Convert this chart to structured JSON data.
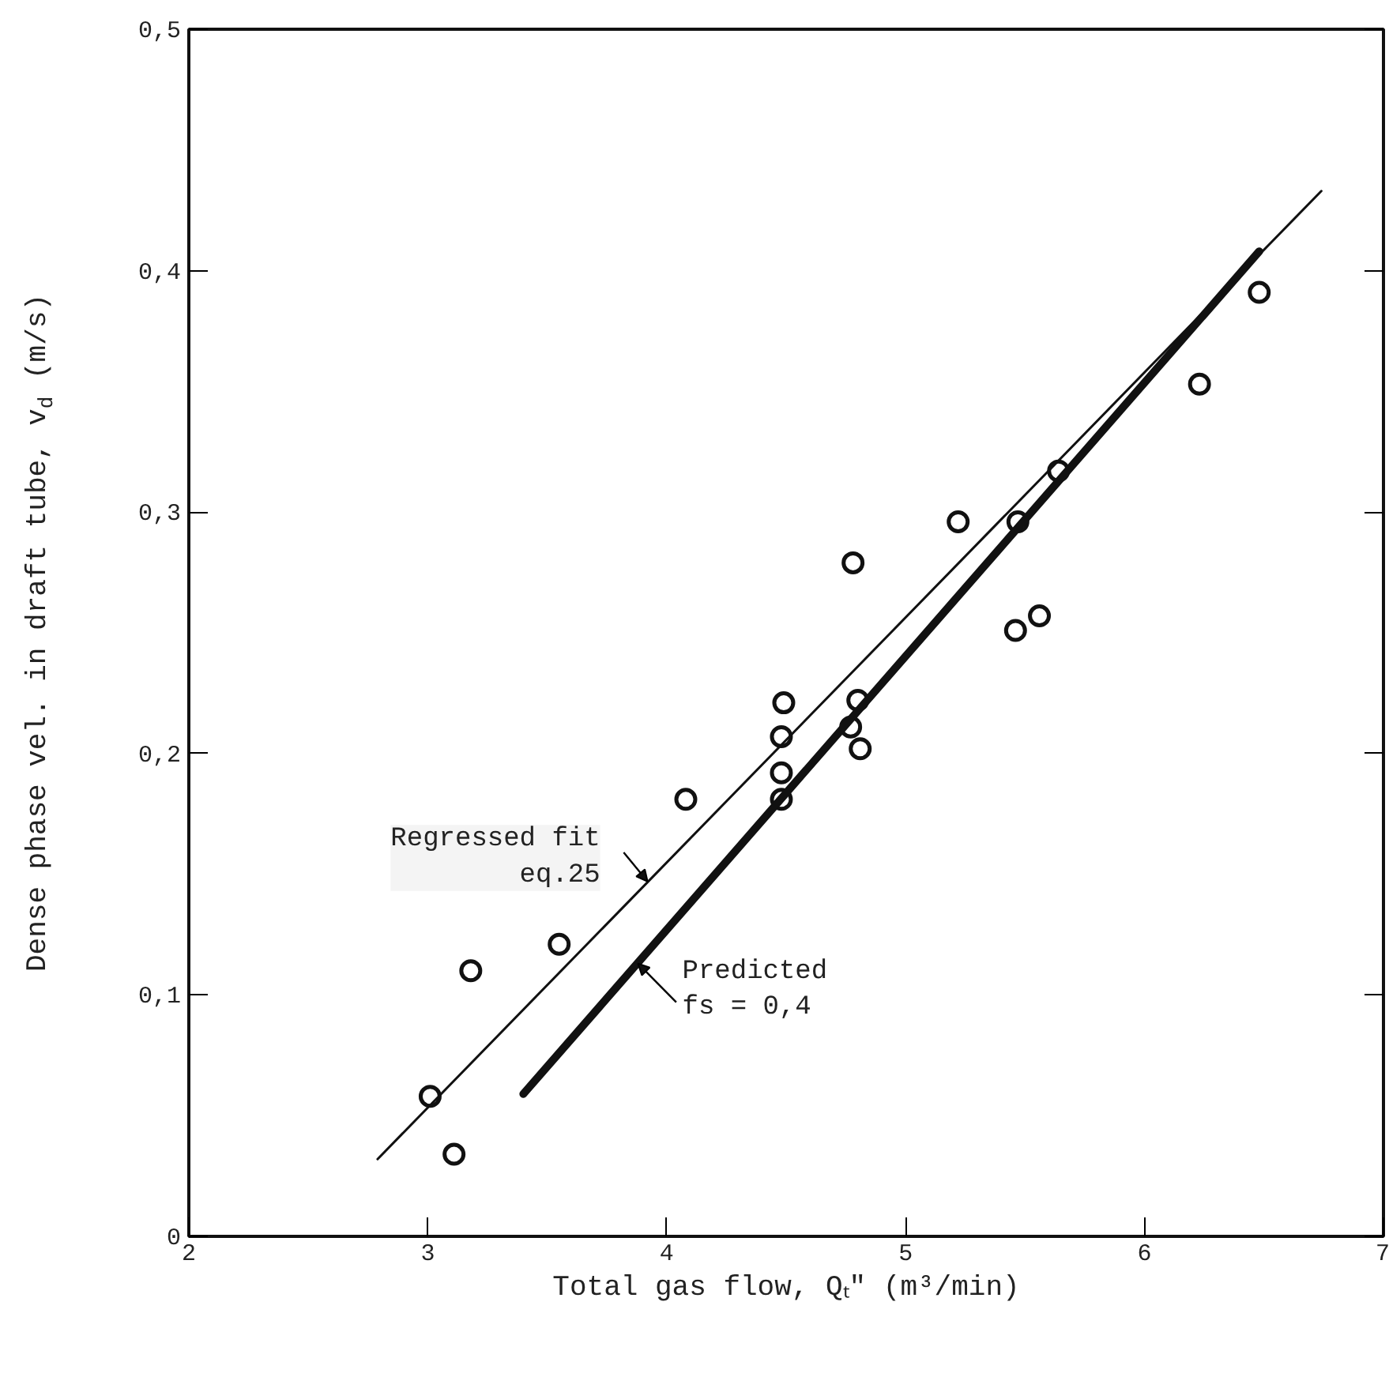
{
  "chart_data": {
    "type": "scatter",
    "xlabel": "Total gas flow, Qₜ″ (m³/min)",
    "ylabel": "Dense phase vel. in draft tube, v$_{d}$ (m/s)",
    "xlim": [
      2,
      7
    ],
    "ylim": [
      0,
      0.5
    ],
    "xticks": [
      2,
      3,
      4,
      5,
      6,
      7
    ],
    "yticks": [
      {
        "value": 0,
        "label": "0"
      },
      {
        "value": 0.1,
        "label": "0,1"
      },
      {
        "value": 0.2,
        "label": "0,2"
      },
      {
        "value": 0.3,
        "label": "0,3"
      },
      {
        "value": 0.4,
        "label": "0,4"
      },
      {
        "value": 0.5,
        "label": "0,5"
      }
    ],
    "grid": false,
    "marker": "circle",
    "series": [
      {
        "color": "#111111",
        "x": [
          6.48,
          6.23,
          5.64,
          5.47,
          5.22,
          4.78,
          5.56,
          5.46,
          4.49,
          4.8,
          4.48,
          4.77,
          4.81,
          4.48,
          4.48,
          4.08,
          3.55,
          3.18,
          3.01,
          3.11
        ],
        "values": [
          0.391,
          0.353,
          0.317,
          0.296,
          0.296,
          0.279,
          0.257,
          0.251,
          0.221,
          0.222,
          0.207,
          0.211,
          0.202,
          0.192,
          0.181,
          0.181,
          0.121,
          0.11,
          0.058,
          0.034
        ]
      },
      {
        "type": "line",
        "color": "#111111",
        "x": [
          2.79,
          6.74
        ],
        "values": [
          0.032,
          0.433
        ],
        "line_style": "solid",
        "marker": "none"
      },
      {
        "type": "line",
        "color": "#111111",
        "x": [
          3.4,
          6.48
        ],
        "values": [
          0.059,
          0.408
        ],
        "line_style": "solid",
        "marker": "none"
      }
    ],
    "annotations": [
      {
        "text": "Regressed fit\neq.25",
        "x": 3.92,
        "y": 0.147
      },
      {
        "text": "Predicted\nfs = 0,4",
        "x": 3.88,
        "y": 0.113
      }
    ]
  }
}
